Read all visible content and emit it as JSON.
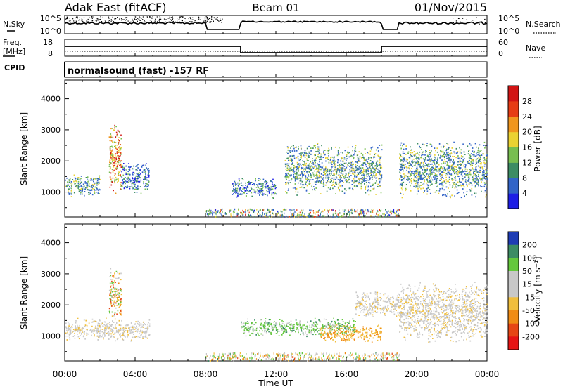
{
  "header": {
    "station": "Adak East (fitACF)",
    "beam": "Beam 01",
    "date": "01/Nov/2015"
  },
  "strips": {
    "nsky_label": "N.Sky",
    "nsky_ticks": [
      "10^5",
      "10^0"
    ],
    "nsearch_label": "N.Search",
    "nsearch_ticks": [
      "10^5",
      "10^0"
    ],
    "freq_label_1": "Freq.",
    "freq_label_2": "[MHz]",
    "freq_ticks": [
      "18",
      "8"
    ],
    "nave_label": "Nave",
    "nave_ticks": [
      "60",
      "0"
    ],
    "cpid_label": "CPID",
    "cpid_text": "normalsound (fast) -157 RF"
  },
  "chart_data": [
    {
      "type": "heatmap",
      "name": "power-panel",
      "xlabel": "",
      "ylabel": "Slant Range [km]",
      "yticks": [
        "1000",
        "2000",
        "3000",
        "4000"
      ],
      "ylim": [
        200,
        4600
      ],
      "xlim": [
        0,
        24
      ],
      "colorbar_label": "Power [dB]",
      "colorbar_ticks": [
        "4",
        "8",
        "12",
        "16",
        "20",
        "24",
        "28"
      ],
      "colorbar_colors": [
        "#1e1ee6",
        "#3264c8",
        "#3c8c64",
        "#78be50",
        "#ebd232",
        "#f0961e",
        "#e63c14",
        "#d21414"
      ],
      "echo_regions": [
        {
          "t0": 0.0,
          "t1": 2.0,
          "r0": 850,
          "r1": 1600,
          "level": "medium"
        },
        {
          "t0": 2.5,
          "t1": 3.2,
          "r0": 900,
          "r1": 3300,
          "level": "high"
        },
        {
          "t0": 3.2,
          "t1": 4.8,
          "r0": 900,
          "r1": 2000,
          "level": "low"
        },
        {
          "t0": 9.5,
          "t1": 12.0,
          "r0": 800,
          "r1": 1500,
          "level": "low"
        },
        {
          "t0": 12.5,
          "t1": 18.0,
          "r0": 900,
          "r1": 2600,
          "level": "medium"
        },
        {
          "t0": 19.0,
          "t1": 24.0,
          "r0": 800,
          "r1": 2700,
          "level": "medium"
        }
      ]
    },
    {
      "type": "heatmap",
      "name": "velocity-panel",
      "xlabel": "Time UT",
      "ylabel": "Slant Range [km]",
      "yticks": [
        "1000",
        "2000",
        "3000",
        "4000"
      ],
      "ylim": [
        200,
        4600
      ],
      "xlim": [
        0,
        24
      ],
      "xticks": [
        "00:00",
        "04:00",
        "08:00",
        "12:00",
        "16:00",
        "20:00",
        "00:00"
      ],
      "colorbar_label": "Velocity [m s⁻¹]",
      "colorbar_ticks": [
        "200",
        "100",
        "50",
        "15",
        "-15",
        "-50",
        "-100",
        "-200"
      ],
      "colorbar_colors": [
        "#1e3cb4",
        "#3c8c64",
        "#64c83c",
        "#c8c8c8",
        "#c8c8c8",
        "#f0be3c",
        "#f08c14",
        "#e64614",
        "#e61414"
      ],
      "echo_regions": [
        {
          "t0": 0.0,
          "t1": 4.8,
          "r0": 850,
          "r1": 1600,
          "level": "grey"
        },
        {
          "t0": 2.5,
          "t1": 3.2,
          "r0": 1500,
          "r1": 3300,
          "level": "mixed"
        },
        {
          "t0": 10.0,
          "t1": 16.5,
          "r0": 1000,
          "r1": 1600,
          "level": "green"
        },
        {
          "t0": 14.5,
          "t1": 18.0,
          "r0": 800,
          "r1": 1400,
          "level": "orange"
        },
        {
          "t0": 16.5,
          "t1": 19.0,
          "r0": 1600,
          "r1": 2500,
          "level": "grey"
        },
        {
          "t0": 19.0,
          "t1": 24.0,
          "r0": 800,
          "r1": 2800,
          "level": "grey"
        }
      ]
    }
  ]
}
